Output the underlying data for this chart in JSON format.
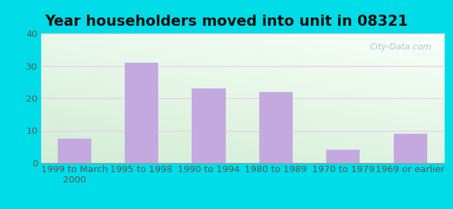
{
  "title": "Year householders moved into unit in 08321",
  "categories": [
    "1999 to March\n2000",
    "1995 to 1998",
    "1990 to 1994",
    "1980 to 1989",
    "1970 to 1979",
    "1969 or earlier"
  ],
  "values": [
    7.5,
    31.0,
    23.0,
    22.0,
    4.0,
    9.0
  ],
  "bar_color": "#c4a8df",
  "ylim": [
    0,
    40
  ],
  "yticks": [
    0,
    10,
    20,
    30,
    40
  ],
  "bg_outer": "#00dde8",
  "grid_color": "#e8d0e0",
  "title_fontsize": 15,
  "tick_fontsize": 9.5,
  "watermark": "City-Data.com",
  "grad_top": "#eaf5ea",
  "grad_bottom": "#c8e8cc",
  "grad_left": "#c8e8cc",
  "grad_right": "#e8f5f8"
}
